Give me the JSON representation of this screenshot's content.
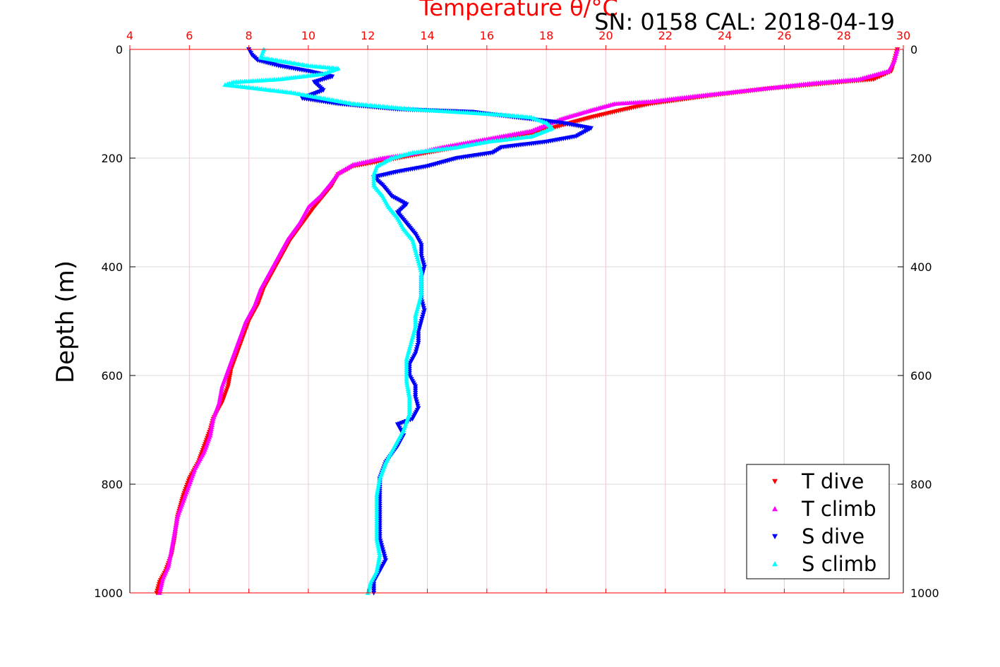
{
  "chart_data": {
    "type": "scatter",
    "title": "Temperature θ/°C",
    "subtitle": "SN: 0158  CAL: 2018-04-19",
    "xlabel": "Temperature θ/°C",
    "ylabel": "Depth (m)",
    "xlim": [
      4,
      30
    ],
    "ylim": [
      1000,
      0
    ],
    "x_ticks": [
      "4",
      "6",
      "8",
      "10",
      "12",
      "14",
      "16",
      "18",
      "20",
      "22",
      "24",
      "26",
      "28",
      "30"
    ],
    "y_ticks": [
      "0",
      "200",
      "400",
      "600",
      "800",
      "1000"
    ],
    "grid": true,
    "legend_position": "bottom-right",
    "colors": {
      "t_dive": "#ff0000",
      "t_climb": "#ff00ff",
      "s_dive": "#0000ff",
      "s_climb": "#00ffff",
      "x_axis": "#ff0000",
      "grid": "#d8d8d8"
    },
    "series": [
      {
        "name": "T dive",
        "marker": "triangle-down",
        "color": "#ff0000",
        "points": [
          [
            29.8,
            0
          ],
          [
            29.7,
            20
          ],
          [
            29.6,
            40
          ],
          [
            29.0,
            55
          ],
          [
            27.5,
            62
          ],
          [
            25.5,
            72
          ],
          [
            23.5,
            85
          ],
          [
            21.5,
            100
          ],
          [
            20.5,
            112
          ],
          [
            19.5,
            125
          ],
          [
            18.5,
            140
          ],
          [
            17.5,
            155
          ],
          [
            16.5,
            165
          ],
          [
            15.5,
            175
          ],
          [
            14.5,
            185
          ],
          [
            13.5,
            195
          ],
          [
            12.5,
            205
          ],
          [
            11.5,
            215
          ],
          [
            11.0,
            230
          ],
          [
            10.8,
            250
          ],
          [
            10.5,
            270
          ],
          [
            10.2,
            290
          ],
          [
            9.8,
            320
          ],
          [
            9.4,
            350
          ],
          [
            9.1,
            380
          ],
          [
            8.8,
            410
          ],
          [
            8.5,
            440
          ],
          [
            8.3,
            470
          ],
          [
            8.0,
            500
          ],
          [
            7.8,
            530
          ],
          [
            7.6,
            560
          ],
          [
            7.4,
            590
          ],
          [
            7.3,
            620
          ],
          [
            7.1,
            650
          ],
          [
            6.8,
            680
          ],
          [
            6.7,
            700
          ],
          [
            6.5,
            730
          ],
          [
            6.3,
            760
          ],
          [
            6.0,
            790
          ],
          [
            5.8,
            820
          ],
          [
            5.6,
            860
          ],
          [
            5.5,
            900
          ],
          [
            5.4,
            930
          ],
          [
            5.2,
            960
          ],
          [
            5.0,
            980
          ],
          [
            4.9,
            1000
          ]
        ]
      },
      {
        "name": "T climb",
        "marker": "triangle-up",
        "color": "#ff00ff",
        "points": [
          [
            29.8,
            0
          ],
          [
            29.7,
            20
          ],
          [
            29.5,
            40
          ],
          [
            28.5,
            55
          ],
          [
            27.0,
            62
          ],
          [
            25.0,
            74
          ],
          [
            23.0,
            86
          ],
          [
            21.5,
            96
          ],
          [
            20.3,
            100
          ],
          [
            19.5,
            112
          ],
          [
            18.5,
            128
          ],
          [
            17.5,
            150
          ],
          [
            16.5,
            160
          ],
          [
            15.5,
            170
          ],
          [
            14.5,
            180
          ],
          [
            13.5,
            192
          ],
          [
            12.5,
            200
          ],
          [
            11.5,
            212
          ],
          [
            11.0,
            228
          ],
          [
            10.7,
            250
          ],
          [
            10.4,
            270
          ],
          [
            10.0,
            290
          ],
          [
            9.7,
            320
          ],
          [
            9.3,
            350
          ],
          [
            9.0,
            380
          ],
          [
            8.7,
            410
          ],
          [
            8.4,
            440
          ],
          [
            8.2,
            470
          ],
          [
            7.9,
            500
          ],
          [
            7.7,
            530
          ],
          [
            7.5,
            560
          ],
          [
            7.3,
            590
          ],
          [
            7.1,
            620
          ],
          [
            7.0,
            650
          ],
          [
            6.8,
            680
          ],
          [
            6.7,
            710
          ],
          [
            6.5,
            740
          ],
          [
            6.2,
            770
          ],
          [
            6.0,
            800
          ],
          [
            5.8,
            830
          ],
          [
            5.6,
            860
          ],
          [
            5.5,
            890
          ],
          [
            5.4,
            920
          ],
          [
            5.3,
            950
          ],
          [
            5.1,
            975
          ],
          [
            5.0,
            1000
          ]
        ]
      },
      {
        "name": "S dive",
        "marker": "triangle-down",
        "color": "#0000ff",
        "points": [
          [
            8.0,
            0
          ],
          [
            8.1,
            10
          ],
          [
            8.3,
            20
          ],
          [
            9.0,
            30
          ],
          [
            10.0,
            40
          ],
          [
            10.8,
            50
          ],
          [
            10.2,
            60
          ],
          [
            10.5,
            75
          ],
          [
            9.8,
            90
          ],
          [
            11.0,
            100
          ],
          [
            13.0,
            110
          ],
          [
            15.5,
            115
          ],
          [
            17.0,
            125
          ],
          [
            18.5,
            135
          ],
          [
            19.5,
            145
          ],
          [
            19.0,
            160
          ],
          [
            18.0,
            170
          ],
          [
            16.5,
            180
          ],
          [
            16.2,
            190
          ],
          [
            15.0,
            200
          ],
          [
            14.0,
            215
          ],
          [
            13.0,
            225
          ],
          [
            12.2,
            235
          ],
          [
            12.5,
            250
          ],
          [
            12.8,
            270
          ],
          [
            13.3,
            285
          ],
          [
            13.0,
            300
          ],
          [
            13.3,
            320
          ],
          [
            13.6,
            340
          ],
          [
            13.8,
            360
          ],
          [
            13.8,
            380
          ],
          [
            13.9,
            400
          ],
          [
            13.8,
            420
          ],
          [
            13.8,
            440
          ],
          [
            13.8,
            460
          ],
          [
            13.9,
            480
          ],
          [
            13.8,
            500
          ],
          [
            13.7,
            520
          ],
          [
            13.7,
            540
          ],
          [
            13.6,
            560
          ],
          [
            13.4,
            580
          ],
          [
            13.4,
            600
          ],
          [
            13.6,
            620
          ],
          [
            13.6,
            640
          ],
          [
            13.7,
            660
          ],
          [
            13.5,
            680
          ],
          [
            13.0,
            690
          ],
          [
            13.2,
            710
          ],
          [
            13.0,
            730
          ],
          [
            12.6,
            760
          ],
          [
            12.4,
            790
          ],
          [
            12.4,
            820
          ],
          [
            12.4,
            860
          ],
          [
            12.4,
            900
          ],
          [
            12.5,
            920
          ],
          [
            12.6,
            940
          ],
          [
            12.4,
            960
          ],
          [
            12.2,
            980
          ],
          [
            12.2,
            1000
          ]
        ]
      },
      {
        "name": "S climb",
        "marker": "triangle-up",
        "color": "#00ffff",
        "points": [
          [
            8.5,
            0
          ],
          [
            8.4,
            15
          ],
          [
            10.0,
            30
          ],
          [
            11.0,
            35
          ],
          [
            10.5,
            45
          ],
          [
            9.0,
            55
          ],
          [
            7.5,
            60
          ],
          [
            7.2,
            65
          ],
          [
            8.0,
            70
          ],
          [
            9.5,
            80
          ],
          [
            10.5,
            90
          ],
          [
            11.5,
            100
          ],
          [
            13.5,
            110
          ],
          [
            15.0,
            115
          ],
          [
            16.5,
            120
          ],
          [
            17.5,
            125
          ],
          [
            18.0,
            135
          ],
          [
            18.2,
            145
          ],
          [
            17.5,
            160
          ],
          [
            16.0,
            170
          ],
          [
            15.0,
            180
          ],
          [
            13.5,
            190
          ],
          [
            12.8,
            200
          ],
          [
            12.3,
            215
          ],
          [
            12.2,
            230
          ],
          [
            12.2,
            250
          ],
          [
            12.5,
            270
          ],
          [
            12.7,
            290
          ],
          [
            13.0,
            310
          ],
          [
            13.2,
            330
          ],
          [
            13.5,
            350
          ],
          [
            13.6,
            370
          ],
          [
            13.7,
            390
          ],
          [
            13.8,
            410
          ],
          [
            13.8,
            430
          ],
          [
            13.8,
            450
          ],
          [
            13.7,
            470
          ],
          [
            13.6,
            490
          ],
          [
            13.6,
            510
          ],
          [
            13.5,
            530
          ],
          [
            13.4,
            550
          ],
          [
            13.3,
            570
          ],
          [
            13.3,
            590
          ],
          [
            13.3,
            610
          ],
          [
            13.4,
            640
          ],
          [
            13.4,
            670
          ],
          [
            13.2,
            700
          ],
          [
            12.9,
            730
          ],
          [
            12.6,
            760
          ],
          [
            12.4,
            790
          ],
          [
            12.3,
            820
          ],
          [
            12.3,
            860
          ],
          [
            12.3,
            900
          ],
          [
            12.4,
            930
          ],
          [
            12.3,
            960
          ],
          [
            12.1,
            980
          ],
          [
            12.0,
            1000
          ]
        ]
      }
    ]
  }
}
